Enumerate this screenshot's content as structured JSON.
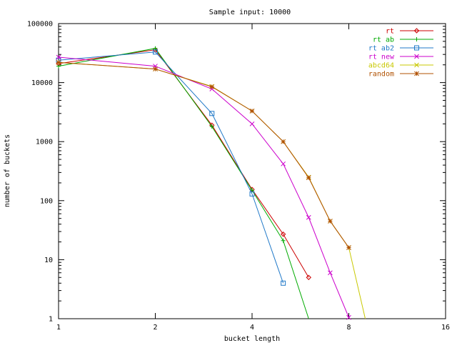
{
  "chart_data": {
    "type": "line",
    "title": "Sample input: 10000",
    "xlabel": "bucket length",
    "ylabel": "number of buckets",
    "x_scale": "log2",
    "y_scale": "log10",
    "xlim": [
      1,
      16
    ],
    "ylim": [
      1,
      100000
    ],
    "x_ticks": [
      1,
      2,
      4,
      8,
      16
    ],
    "x_tick_labels": [
      "1",
      "2",
      "4",
      "8",
      "16"
    ],
    "y_ticks": [
      1,
      10,
      100,
      1000,
      10000,
      100000
    ],
    "y_tick_labels": [
      "1",
      "10",
      "100",
      "1000",
      "10000",
      "100000"
    ],
    "grid": false,
    "legend_position": "top-right",
    "series": [
      {
        "name": "rt",
        "color": "#cc0000",
        "marker": "diamond",
        "x": [
          1,
          2,
          3,
          4,
          5,
          6
        ],
        "y": [
          21000,
          36000,
          1900,
          155,
          27,
          5
        ]
      },
      {
        "name": "rt ab",
        "color": "#00aa00",
        "marker": "plus",
        "x": [
          1,
          2,
          3,
          4,
          5,
          6
        ],
        "y": [
          19000,
          38000,
          1800,
          150,
          21,
          1
        ]
      },
      {
        "name": "rt ab2",
        "color": "#1f78c8",
        "marker": "square",
        "x": [
          1,
          2,
          3,
          4,
          5
        ],
        "y": [
          24000,
          33000,
          3000,
          130,
          4
        ]
      },
      {
        "name": "rt new",
        "color": "#cc00cc",
        "marker": "x",
        "x": [
          1,
          2,
          3,
          4,
          5,
          6,
          7,
          8
        ],
        "y": [
          27000,
          19000,
          7800,
          2000,
          420,
          52,
          6,
          1.05
        ]
      },
      {
        "name": "abcd64",
        "color": "#c8c800",
        "marker": "x",
        "x": [
          1,
          2,
          3,
          4,
          5,
          6,
          7,
          8,
          9
        ],
        "y": [
          22000,
          17000,
          8600,
          3300,
          1000,
          250,
          45,
          16,
          1
        ]
      },
      {
        "name": "random",
        "color": "#b05000",
        "marker": "star",
        "x": [
          1,
          2,
          3,
          4,
          5,
          6,
          7,
          8
        ],
        "y": [
          22000,
          17000,
          8500,
          3300,
          1000,
          245,
          45,
          16
        ]
      }
    ]
  }
}
